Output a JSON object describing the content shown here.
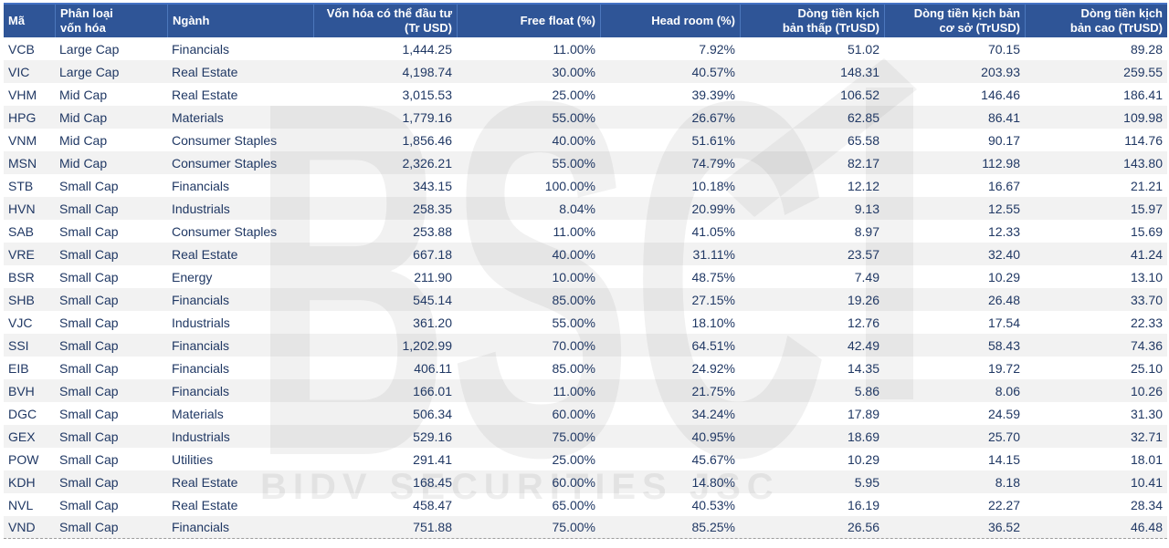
{
  "chart_data": {
    "type": "table",
    "title": "",
    "columns": [
      "Mã",
      "Phân loại vốn hóa",
      "Ngành",
      "Vốn hóa có thể đầu tư (Tr USD)",
      "Free float (%)",
      "Head room (%)",
      "Dòng tiền kịch bản thấp (TrUSD)",
      "Dòng tiền kịch bản cơ sở (TrUSD)",
      "Dòng tiền kịch bản cao (TrUSD)"
    ],
    "rows": [
      [
        "VCB",
        "Large Cap",
        "Financials",
        "1,444.25",
        "11.00%",
        "7.92%",
        "51.02",
        "70.15",
        "89.28"
      ],
      [
        "VIC",
        "Large Cap",
        "Real Estate",
        "4,198.74",
        "30.00%",
        "40.57%",
        "148.31",
        "203.93",
        "259.55"
      ],
      [
        "VHM",
        "Mid Cap",
        "Real Estate",
        "3,015.53",
        "25.00%",
        "39.39%",
        "106.52",
        "146.46",
        "186.41"
      ],
      [
        "HPG",
        "Mid Cap",
        "Materials",
        "1,779.16",
        "55.00%",
        "26.67%",
        "62.85",
        "86.41",
        "109.98"
      ],
      [
        "VNM",
        "Mid Cap",
        "Consumer Staples",
        "1,856.46",
        "40.00%",
        "51.61%",
        "65.58",
        "90.17",
        "114.76"
      ],
      [
        "MSN",
        "Mid Cap",
        "Consumer Staples",
        "2,326.21",
        "55.00%",
        "74.79%",
        "82.17",
        "112.98",
        "143.80"
      ],
      [
        "STB",
        "Small Cap",
        "Financials",
        "343.15",
        "100.00%",
        "10.18%",
        "12.12",
        "16.67",
        "21.21"
      ],
      [
        "HVN",
        "Small Cap",
        "Industrials",
        "258.35",
        "8.04%",
        "20.99%",
        "9.13",
        "12.55",
        "15.97"
      ],
      [
        "SAB",
        "Small Cap",
        "Consumer Staples",
        "253.88",
        "11.00%",
        "41.05%",
        "8.97",
        "12.33",
        "15.69"
      ],
      [
        "VRE",
        "Small Cap",
        "Real Estate",
        "667.18",
        "40.00%",
        "31.11%",
        "23.57",
        "32.40",
        "41.24"
      ],
      [
        "BSR",
        "Small Cap",
        "Energy",
        "211.90",
        "10.00%",
        "48.75%",
        "7.49",
        "10.29",
        "13.10"
      ],
      [
        "SHB",
        "Small Cap",
        "Financials",
        "545.14",
        "85.00%",
        "27.15%",
        "19.26",
        "26.48",
        "33.70"
      ],
      [
        "VJC",
        "Small Cap",
        "Industrials",
        "361.20",
        "55.00%",
        "18.10%",
        "12.76",
        "17.54",
        "22.33"
      ],
      [
        "SSI",
        "Small Cap",
        "Financials",
        "1,202.99",
        "70.00%",
        "64.51%",
        "42.49",
        "58.43",
        "74.36"
      ],
      [
        "EIB",
        "Small Cap",
        "Financials",
        "406.11",
        "85.00%",
        "24.92%",
        "14.35",
        "19.72",
        "25.10"
      ],
      [
        "BVH",
        "Small Cap",
        "Financials",
        "166.01",
        "11.00%",
        "21.75%",
        "5.86",
        "8.06",
        "10.26"
      ],
      [
        "DGC",
        "Small Cap",
        "Materials",
        "506.34",
        "60.00%",
        "34.24%",
        "17.89",
        "24.59",
        "31.30"
      ],
      [
        "GEX",
        "Small Cap",
        "Industrials",
        "529.16",
        "75.00%",
        "40.95%",
        "18.69",
        "25.70",
        "32.71"
      ],
      [
        "POW",
        "Small Cap",
        "Utilities",
        "291.41",
        "25.00%",
        "45.67%",
        "10.29",
        "14.15",
        "18.01"
      ],
      [
        "KDH",
        "Small Cap",
        "Real Estate",
        "168.45",
        "60.00%",
        "14.80%",
        "5.95",
        "8.18",
        "10.41"
      ],
      [
        "NVL",
        "Small Cap",
        "Real Estate",
        "458.47",
        "65.00%",
        "40.53%",
        "16.19",
        "22.27",
        "28.34"
      ],
      [
        "VND",
        "Small Cap",
        "Financials",
        "751.88",
        "75.00%",
        "85.25%",
        "26.56",
        "36.52",
        "46.48"
      ]
    ]
  },
  "ui": {
    "header_labels": [
      "Mã",
      "Phân loại\nvốn hóa",
      "Ngành",
      "Vốn hóa có thể đầu tư\n(Tr USD)",
      "Free float (%)",
      "Head room (%)",
      "Dòng tiền kịch\nbản thấp (TrUSD)",
      "Dòng tiền kịch bản\ncơ sở (TrUSD)",
      "Dòng tiền kịch\nbản cao (TrUSD)"
    ],
    "column_keys": [
      "ma",
      "phan-loai-von-hoa",
      "nganh",
      "von-hoa-dau-tu",
      "free-float",
      "head-room",
      "dong-tien-thap",
      "dong-tien-co-so",
      "dong-tien-cao"
    ]
  },
  "watermark": {
    "logo_text": "BSC",
    "subtext": "BIDV SECURITIES JSC"
  },
  "colors": {
    "header_bg": "#2F5597",
    "header_border": "#4472C4",
    "header_text": "#FFFFFF",
    "body_text": "#203864",
    "stripe_bg": "#F2F2F2",
    "watermark_gray": "#E8E8E8"
  }
}
